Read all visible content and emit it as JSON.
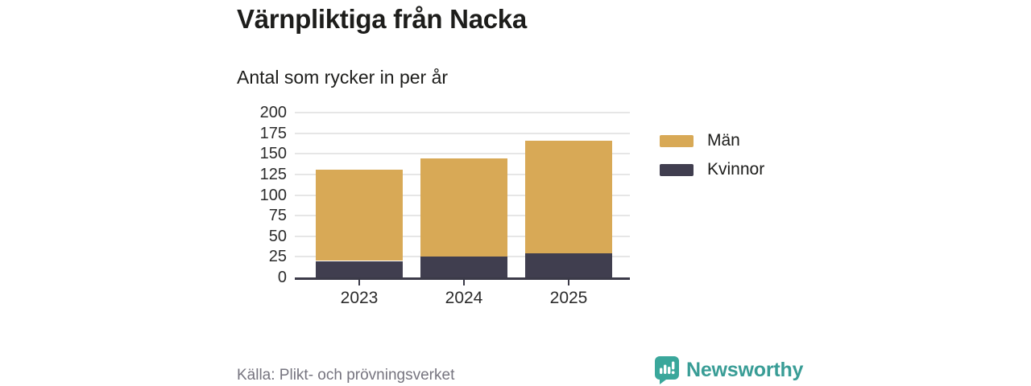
{
  "header": {
    "title": "Värnpliktiga från Nacka",
    "subtitle": "Antal som rycker in per år"
  },
  "chart_data": {
    "type": "bar",
    "stacked": true,
    "title": "Värnpliktiga från Nacka",
    "subtitle": "Antal som rycker in per år",
    "categories": [
      "2023",
      "2024",
      "2025"
    ],
    "series": [
      {
        "name": "Män",
        "color": "#d8a956",
        "values": [
          111,
          119,
          137
        ]
      },
      {
        "name": "Kvinnor",
        "color": "#403e4f",
        "values": [
          20,
          25,
          29
        ]
      }
    ],
    "stack_order_bottom_up": [
      "Kvinnor",
      "Män"
    ],
    "totals": [
      131,
      144,
      166
    ],
    "xlabel": "",
    "ylabel": "",
    "ylim": [
      0,
      200
    ],
    "yticks": [
      0,
      25,
      50,
      75,
      100,
      125,
      150,
      175,
      200
    ],
    "grid": true,
    "legend_position": "right",
    "colors": {
      "grid": "#e6e6e6",
      "axis": "#3b3a48",
      "tick_label": "#2b2b2b"
    }
  },
  "footer": {
    "source": "Källa: Plikt- och prövningsverket",
    "brand": "Newsworthy",
    "brand_color": "#399d96",
    "logo_icon": "bar-chart-speech-bubble-icon"
  }
}
